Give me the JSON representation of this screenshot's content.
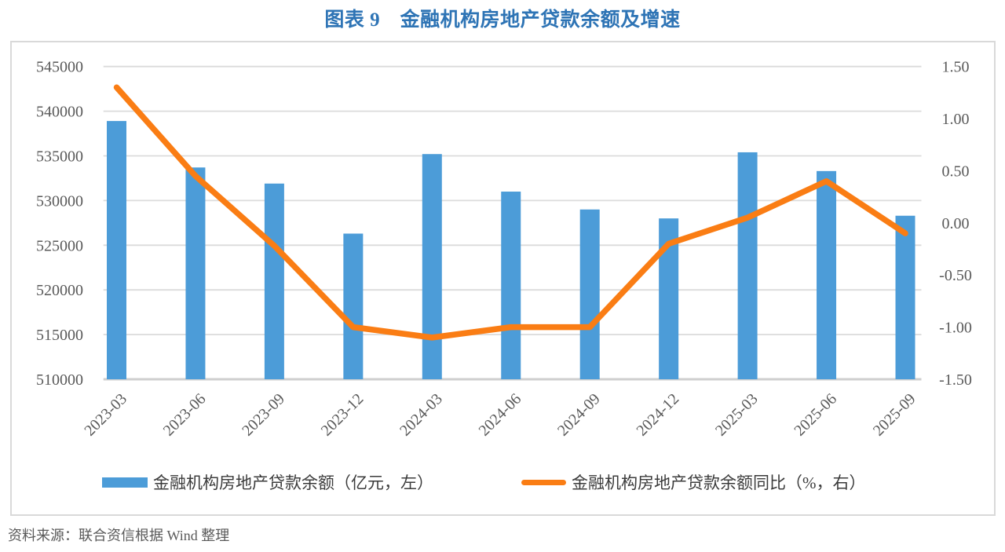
{
  "page": {
    "title": "图表 9　金融机构房地产贷款余额及增速",
    "source_note": "资料来源：联合资信根据 Wind 整理"
  },
  "colors": {
    "title_blue": "#2E74B5",
    "bar_blue": "#4C9CD8",
    "line_orange": "#FA7D14",
    "axis_text": "#595959",
    "gridline": "#DBDBDB",
    "axis_line": "#CFCFCF",
    "chart_border": "#D9D9D9"
  },
  "legend": {
    "bar_label": "金融机构房地产贷款余额（亿元，左）",
    "line_label": "金融机构房地产贷款余额同比（%，右）"
  },
  "chart_data": {
    "type": "combo",
    "title": "图表 9　金融机构房地产贷款余额及增速",
    "categories": [
      "2023-03",
      "2023-06",
      "2023-09",
      "2023-12",
      "2024-03",
      "2024-06",
      "2024-09",
      "2024-12",
      "2025-03",
      "2025-06",
      "2025-09"
    ],
    "series": [
      {
        "name": "金融机构房地产贷款余额（亿元，左）",
        "type": "bar",
        "axis": "left",
        "values": [
          538900,
          533700,
          531900,
          526300,
          535200,
          531000,
          529000,
          528000,
          535400,
          533300,
          528300
        ]
      },
      {
        "name": "金融机构房地产贷款余额同比（%，右）",
        "type": "line",
        "axis": "right",
        "values": [
          1.3,
          0.45,
          -0.22,
          -1.0,
          -1.1,
          -1.0,
          -1.0,
          -0.2,
          0.05,
          0.4,
          -0.1
        ]
      }
    ],
    "left_axis": {
      "min": 510000,
      "max": 545000,
      "step": 5000,
      "tick_labels": [
        "545000",
        "540000",
        "535000",
        "530000",
        "525000",
        "520000",
        "515000",
        "510000"
      ]
    },
    "right_axis": {
      "min": -1.5,
      "max": 1.5,
      "step": 0.5,
      "tick_labels": [
        "1.50",
        "1.00",
        "0.50",
        "0.00",
        "-0.50",
        "-1.00",
        "-1.50"
      ]
    },
    "grid": true,
    "legend_position": "bottom",
    "xlabel": "",
    "ylabel": ""
  }
}
